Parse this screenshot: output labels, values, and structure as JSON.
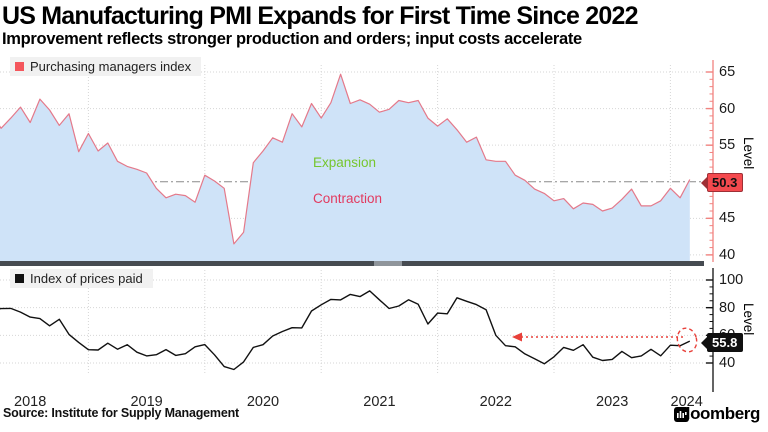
{
  "header": {
    "title": "US Manufacturing PMI Expands for First Time Since 2022",
    "subtitle": "Improvement reflects stronger production and orders; input costs accelerate"
  },
  "chart_data": [
    {
      "type": "area",
      "legend": "Purchasing managers index",
      "legend_color": "#f4565c",
      "line_color": "#e4798a",
      "fill_color": "#cfe3f8",
      "axis_color": "#f2827f",
      "ylabel": "Level",
      "yticks": [
        40,
        45,
        50,
        55,
        60,
        65
      ],
      "ylim": [
        39,
        66.5
      ],
      "baseline": 50,
      "last_value": "50.3",
      "badge_color": "#f4494e",
      "zones": [
        {
          "text": "Expansion",
          "color": "#76c62e"
        },
        {
          "text": "Contraction",
          "color": "#e23a5f"
        }
      ],
      "x_start": "2018-01",
      "x_end": "2024-03",
      "freq": "monthly",
      "values": [
        59.1,
        60.8,
        59.3,
        57.3,
        58.7,
        60.2,
        58.1,
        61.3,
        59.8,
        57.7,
        59.3,
        54.1,
        56.6,
        54.2,
        55.3,
        52.8,
        52.1,
        51.7,
        51.2,
        49.1,
        47.8,
        48.3,
        48.1,
        47.2,
        50.9,
        50.1,
        49.1,
        41.5,
        43.1,
        52.6,
        54.2,
        56.0,
        55.4,
        59.3,
        57.5,
        60.7,
        58.7,
        60.8,
        64.7,
        60.7,
        61.2,
        60.6,
        59.5,
        59.9,
        61.1,
        60.8,
        61.1,
        58.7,
        57.6,
        58.6,
        57.1,
        55.4,
        56.1,
        53.0,
        52.8,
        52.8,
        50.9,
        50.2,
        49.0,
        48.4,
        47.4,
        47.7,
        46.3,
        47.1,
        46.9,
        46.0,
        46.4,
        47.6,
        49.0,
        46.7,
        46.7,
        47.4,
        49.1,
        47.8,
        50.3
      ]
    },
    {
      "type": "line",
      "legend": "Index of prices paid",
      "legend_color": "#111111",
      "line_color": "#111111",
      "fill_color": null,
      "axis_color": "#111111",
      "ylabel": "Level",
      "yticks": [
        40,
        60,
        80,
        100
      ],
      "ylim": [
        31,
        108
      ],
      "baseline": null,
      "last_value": "55.8",
      "badge_color": "#101010",
      "annotation": {
        "shape": "dashed-circle-and-left-arrow",
        "color": "#e8403a"
      },
      "x_start": "2018-01",
      "x_end": "2024-03",
      "freq": "monthly",
      "values": [
        72.7,
        74.2,
        78.1,
        79.3,
        79.5,
        76.8,
        73.2,
        72.1,
        66.9,
        71.6,
        60.7,
        54.9,
        49.6,
        49.4,
        54.3,
        50.0,
        53.2,
        47.8,
        45.1,
        46.0,
        49.7,
        45.5,
        46.7,
        51.7,
        53.3,
        45.9,
        37.4,
        35.3,
        40.8,
        51.3,
        53.2,
        59.5,
        62.8,
        65.5,
        65.4,
        77.6,
        82.1,
        86.0,
        85.6,
        89.6,
        88.0,
        92.1,
        85.7,
        79.4,
        81.2,
        85.7,
        82.4,
        68.2,
        76.1,
        75.6,
        87.1,
        84.6,
        82.2,
        78.5,
        60.0,
        52.5,
        51.7,
        46.6,
        43.0,
        39.4,
        44.5,
        51.3,
        49.2,
        53.2,
        44.2,
        41.8,
        42.6,
        48.4,
        43.8,
        45.1,
        49.9,
        45.2,
        52.9,
        52.5,
        55.8
      ]
    }
  ],
  "x_axis": {
    "years": [
      "2018",
      "2019",
      "2020",
      "2021",
      "2022",
      "2023",
      "2024"
    ]
  },
  "footer": {
    "source": "Source: Institute for Supply Management",
    "brand": "Bloomberg"
  }
}
